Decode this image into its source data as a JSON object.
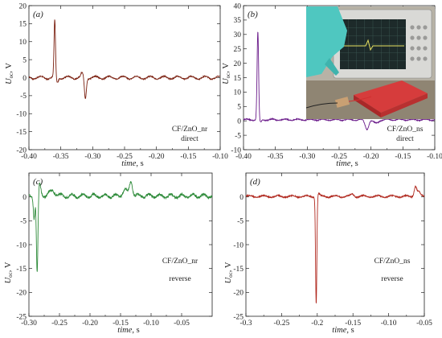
{
  "chart_data": [
    {
      "type": "line",
      "panel_label": "(a)",
      "ylabel": "U",
      "ylabel_sub": "oc",
      "ylabel_unit": ", V",
      "xlabel": "time",
      "xlabel_unit": ", s",
      "xlim": [
        -0.4,
        -0.1
      ],
      "ylim": [
        -20,
        20
      ],
      "xticks": [
        -0.4,
        -0.35,
        -0.3,
        -0.25,
        -0.2,
        -0.15,
        -0.1
      ],
      "xtick_labels": [
        "-0.40",
        "-0.35",
        "-0.30",
        "-0.25",
        "-0.20",
        "-0.15",
        "-0.10"
      ],
      "yticks": [
        -20,
        -15,
        -10,
        -5,
        0,
        5,
        10,
        15,
        20
      ],
      "ytick_labels": [
        "-20",
        "-15",
        "-10",
        "-5",
        "0",
        "5",
        "10",
        "15",
        "20"
      ],
      "annotation": [
        "CF/ZnO_nr",
        "direct"
      ],
      "color": "#7a1f0f",
      "baseline": 0,
      "ripple": {
        "amplitude": 0.4,
        "period": 0.0215,
        "noise": 0.15
      },
      "features": [
        {
          "x": -0.3595,
          "y": 15.8,
          "width": 0.0016
        },
        {
          "x": -0.3555,
          "y": -1.4,
          "width": 0.0022
        },
        {
          "x": -0.3115,
          "y": -5.8,
          "width": 0.0022
        },
        {
          "x": -0.3165,
          "y": 1.2,
          "width": 0.0025
        }
      ]
    },
    {
      "type": "line",
      "panel_label": "(b)",
      "ylabel": "U",
      "ylabel_sub": "oc",
      "ylabel_unit": ", V",
      "xlabel": "time",
      "xlabel_unit": ", s",
      "xlim": [
        -0.4,
        -0.1
      ],
      "ylim": [
        -10,
        40
      ],
      "xticks": [
        -0.4,
        -0.35,
        -0.3,
        -0.25,
        -0.2,
        -0.15,
        -0.1
      ],
      "xtick_labels": [
        "-0.40",
        "-0.35",
        "-0.30",
        "-0.25",
        "-0.20",
        "-0.15",
        "-0.10"
      ],
      "yticks": [
        -10,
        -5,
        0,
        5,
        10,
        15,
        20,
        25,
        30,
        35,
        40
      ],
      "ytick_labels": [
        "-10",
        "-5",
        "0",
        "5",
        "10",
        "15",
        "20",
        "25",
        "30",
        "35",
        "40"
      ],
      "annotation": [
        "CF/ZnO_ns",
        "direct"
      ],
      "color": "#6a1b8a",
      "baseline": 0.4,
      "ripple": {
        "amplitude": 0.25,
        "period": 0.02,
        "noise": 0.15
      },
      "features": [
        {
          "x": -0.3775,
          "y": 30.5,
          "width": 0.0017
        },
        {
          "x": -0.3735,
          "y": -1.0,
          "width": 0.0025
        },
        {
          "x": -0.2065,
          "y": -3.2,
          "width": 0.004
        },
        {
          "x": -0.1925,
          "y": -1.2,
          "width": 0.006
        }
      ]
    },
    {
      "type": "line",
      "panel_label": "(c)",
      "ylabel": "U",
      "ylabel_sub": "oc",
      "ylabel_unit": ", V",
      "xlabel": "time",
      "xlabel_unit": ", s",
      "xlim": [
        -0.3,
        0.0
      ],
      "ylim": [
        -25,
        5
      ],
      "xticks": [
        -0.3,
        -0.25,
        -0.2,
        -0.15,
        -0.1,
        -0.05
      ],
      "xtick_labels": [
        "-0.30",
        "-0.25",
        "-0.20",
        "-0.15",
        "-0.10",
        "-0.05"
      ],
      "yticks": [
        -25,
        -20,
        -15,
        -10,
        -5,
        0
      ],
      "ytick_labels": [
        "-25",
        "-20",
        "-15",
        "-10",
        "-5",
        "0"
      ],
      "annotation": [
        "CF/ZnO_nr",
        "reverse"
      ],
      "color": "#2e8b3a",
      "baseline": 0.2,
      "ripple": {
        "amplitude": 0.35,
        "period": 0.018,
        "noise": 0.25
      },
      "features": [
        {
          "x": -0.2915,
          "y": -4.5,
          "width": 0.0018
        },
        {
          "x": -0.2865,
          "y": -16.5,
          "width": 0.0018
        },
        {
          "x": -0.2825,
          "y": 2.4,
          "width": 0.0028
        },
        {
          "x": -0.262,
          "y": 1.0,
          "width": 0.008
        },
        {
          "x": -0.133,
          "y": 3.1,
          "width": 0.0035
        },
        {
          "x": -0.143,
          "y": 1.3,
          "width": 0.005
        }
      ]
    },
    {
      "type": "line",
      "panel_label": "(d)",
      "ylabel": "U",
      "ylabel_sub": "oc",
      "ylabel_unit": ", V",
      "xlabel": "time",
      "xlabel_unit": ", s",
      "xlim": [
        -0.3,
        -0.05
      ],
      "ylim": [
        -25,
        5
      ],
      "xticks": [
        -0.3,
        -0.25,
        -0.2,
        -0.15,
        -0.1,
        -0.05
      ],
      "xtick_labels": [
        "-0.3",
        "-0.25",
        "-0.2",
        "-0.15",
        "-0.10",
        "-0.05"
      ],
      "yticks": [
        -25,
        -20,
        -15,
        -10,
        -5,
        0
      ],
      "ytick_labels": [
        "-25",
        "-20",
        "-15",
        "-10",
        "-5",
        "0"
      ],
      "annotation": [
        "CF/ZnO_ns",
        "reverse"
      ],
      "color": "#b0281e",
      "baseline": 0.1,
      "ripple": {
        "amplitude": 0.2,
        "period": 0.02,
        "noise": 0.12
      },
      "features": [
        {
          "x": -0.2015,
          "y": -22.5,
          "width": 0.0013
        },
        {
          "x": -0.1985,
          "y": 0.6,
          "width": 0.0025
        },
        {
          "x": -0.0625,
          "y": 2.1,
          "width": 0.0025
        },
        {
          "x": -0.058,
          "y": 0.9,
          "width": 0.003
        },
        {
          "x": -0.151,
          "y": 0.5,
          "width": 0.003
        }
      ]
    }
  ],
  "inset_photo": {
    "description_visible": "oscilloscope-setup-photo",
    "colors": {
      "screen": "#1d2a2a",
      "device": "#d63c3c",
      "glove": "#4fc7c0"
    }
  }
}
